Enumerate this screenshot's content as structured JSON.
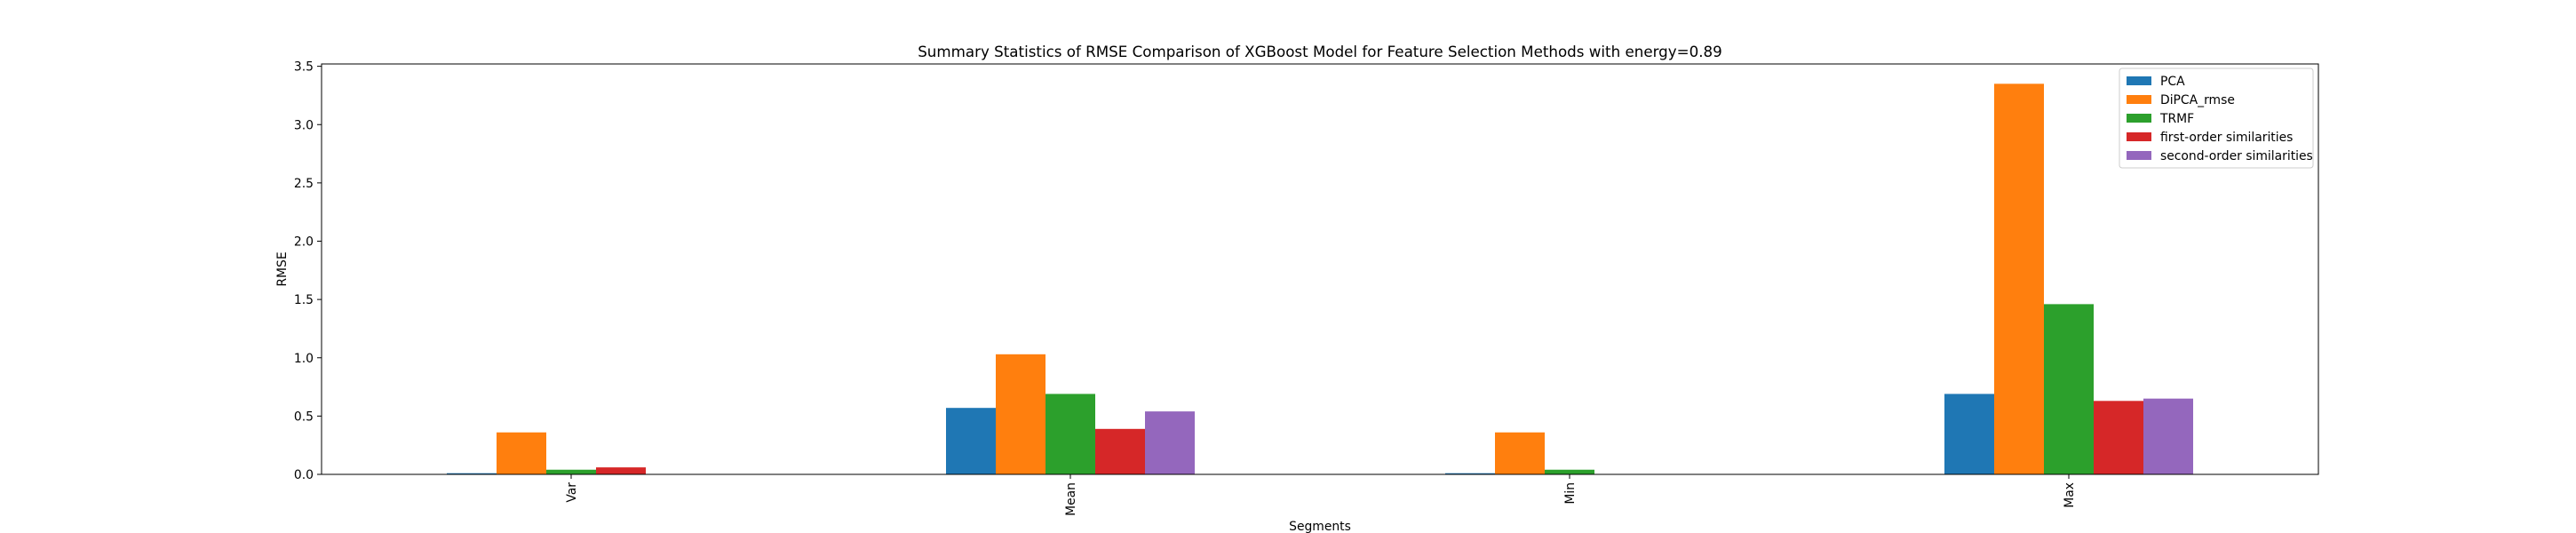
{
  "chart_data": {
    "type": "bar",
    "title": "Summary Statistics of RMSE Comparison of XGBoost Model for Feature Selection Methods with energy=0.89",
    "xlabel": "Segments",
    "ylabel": "RMSE",
    "categories": [
      "Var",
      "Mean",
      "Min",
      "Max"
    ],
    "ylim": [
      0,
      3.52
    ],
    "yticks": [
      "0.0",
      "0.5",
      "1.0",
      "1.5",
      "2.0",
      "2.5",
      "3.0",
      "3.5"
    ],
    "grid": false,
    "legend_position": "top-right",
    "series": [
      {
        "name": "PCA",
        "color": "#1f77b4",
        "values": [
          0.01,
          0.57,
          0.01,
          0.69
        ]
      },
      {
        "name": "DiPCA_rmse",
        "color": "#ff7f0e",
        "values": [
          0.36,
          1.03,
          0.36,
          3.35
        ]
      },
      {
        "name": "TRMF",
        "color": "#2ca02c",
        "values": [
          0.04,
          0.69,
          0.04,
          1.46
        ]
      },
      {
        "name": "first-order similarities",
        "color": "#d62728",
        "values": [
          0.06,
          0.39,
          0.0,
          0.63
        ]
      },
      {
        "name": "second-order similarities",
        "color": "#9467bd",
        "values": [
          0.0,
          0.54,
          0.0,
          0.65
        ]
      }
    ]
  }
}
